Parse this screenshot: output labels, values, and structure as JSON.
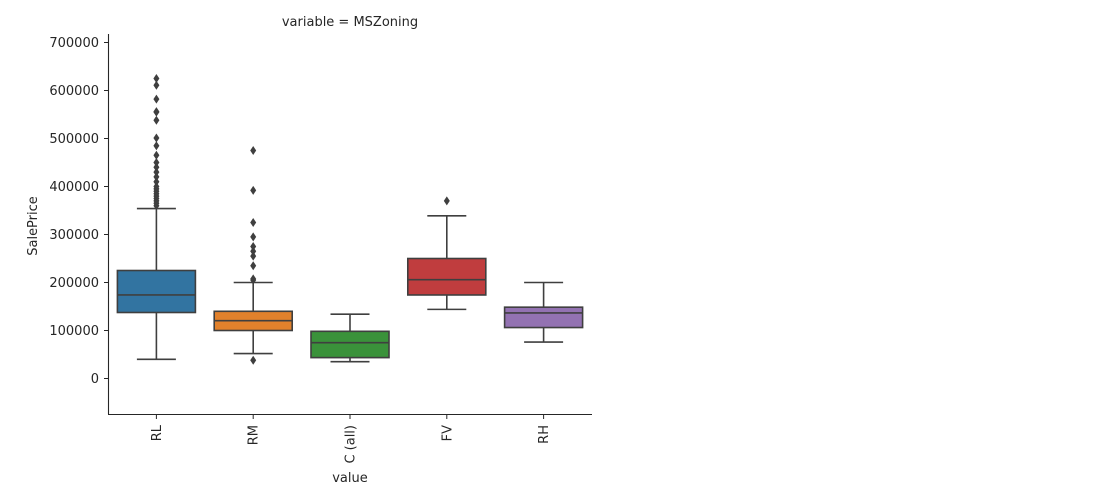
{
  "chart_data": {
    "type": "box",
    "title": "variable = MSZoning",
    "xlabel": "value",
    "ylabel": "SalePrice",
    "ylim": [
      -75000,
      720000
    ],
    "yticks": [
      0,
      100000,
      200000,
      300000,
      400000,
      500000,
      600000,
      700000
    ],
    "ytick_labels": [
      "0",
      "100000",
      "200000",
      "300000",
      "400000",
      "500000",
      "600000",
      "700000"
    ],
    "grid": false,
    "categories": [
      "RL",
      "RM",
      "C (all)",
      "FV",
      "RH"
    ],
    "boxes": [
      {
        "category": "RL",
        "color": "#3274a1",
        "whislo": 40000,
        "q1": 137500,
        "med": 174000,
        "q3": 225000,
        "whishi": 354000,
        "fliers": [
          360000,
          365000,
          370000,
          375000,
          380000,
          385000,
          390000,
          395000,
          400000,
          410000,
          420000,
          430000,
          440000,
          450000,
          465000,
          485000,
          501000,
          538000,
          555000,
          556000,
          582000,
          611000,
          625000
        ]
      },
      {
        "category": "RM",
        "color": "#e1812c",
        "whislo": 52000,
        "q1": 100000,
        "med": 120500,
        "q3": 140000,
        "whishi": 200000,
        "fliers": [
          37900,
          205000,
          207500,
          235000,
          255000,
          265000,
          275000,
          295000,
          325000,
          392000,
          475000
        ]
      },
      {
        "category": "C (all)",
        "color": "#3a923a",
        "whislo": 35000,
        "q1": 43500,
        "med": 74700,
        "q3": 98300,
        "whishi": 133900,
        "fliers": []
      },
      {
        "category": "FV",
        "color": "#c03d3e",
        "whislo": 144000,
        "q1": 174000,
        "med": 205950,
        "q3": 250000,
        "whishi": 339000,
        "fliers": [
          370000
        ]
      },
      {
        "category": "RH",
        "color": "#9372b2",
        "whislo": 76000,
        "q1": 106150,
        "med": 136500,
        "q3": 148600,
        "whishi": 200000,
        "fliers": []
      }
    ]
  }
}
